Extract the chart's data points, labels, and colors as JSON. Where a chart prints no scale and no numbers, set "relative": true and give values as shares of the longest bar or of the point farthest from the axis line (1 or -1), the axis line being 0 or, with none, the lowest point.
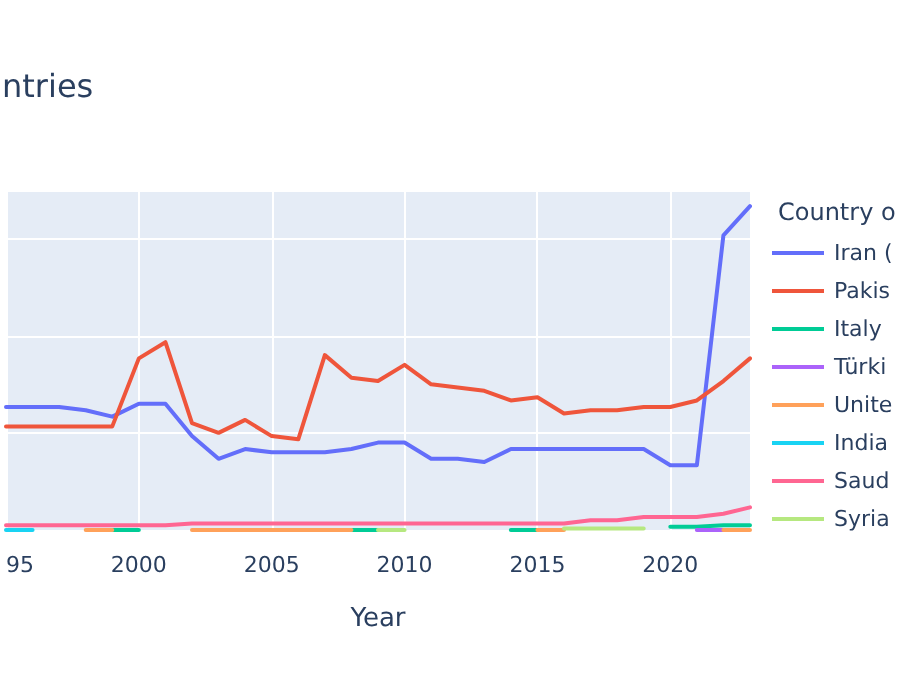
{
  "chart_data": {
    "type": "line",
    "title": "ntries",
    "xlabel": "Year",
    "legend_title": "Country o",
    "relative": true,
    "grid": true,
    "legend": "right",
    "marker": "none",
    "line_style": "solid",
    "x": [
      1995,
      1996,
      1997,
      1998,
      1999,
      2000,
      2001,
      2002,
      2003,
      2004,
      2005,
      2006,
      2007,
      2008,
      2009,
      2010,
      2011,
      2012,
      2013,
      2014,
      2015,
      2016,
      2017,
      2018,
      2019,
      2020,
      2021,
      2022,
      2023
    ],
    "xlim": [
      1995,
      2023
    ],
    "xticks": [
      {
        "value": 1995,
        "label": "95"
      },
      2000,
      2005,
      2010,
      2015,
      2020
    ],
    "series": [
      {
        "name": "Iran (",
        "color": "#636efa",
        "values": [
          0.38,
          0.38,
          0.38,
          0.37,
          0.35,
          0.39,
          0.39,
          0.29,
          0.22,
          0.25,
          0.24,
          0.24,
          0.24,
          0.25,
          0.27,
          0.27,
          0.22,
          0.22,
          0.21,
          0.25,
          0.25,
          0.25,
          0.25,
          0.25,
          0.25,
          0.2,
          0.2,
          0.91,
          1
        ]
      },
      {
        "name": "Pakis",
        "color": "#ef553b",
        "values": [
          0.32,
          0.32,
          0.32,
          0.32,
          0.32,
          0.53,
          0.58,
          0.33,
          0.3,
          0.34,
          0.29,
          0.28,
          0.54,
          0.47,
          0.46,
          0.51,
          0.45,
          0.44,
          0.43,
          0.4,
          0.41,
          0.36,
          0.37,
          0.37,
          0.38,
          0.38,
          0.4,
          0.46,
          0.53
        ]
      },
      {
        "name": "Italy",
        "color": "#00cc96",
        "values": [
          null,
          null,
          null,
          null,
          0,
          0,
          null,
          null,
          null,
          null,
          null,
          null,
          null,
          0,
          0,
          null,
          null,
          null,
          null,
          0,
          0,
          null,
          null,
          null,
          null,
          0.01,
          0.01,
          0.015,
          0.015
        ]
      },
      {
        "name": "Türki",
        "color": "#ab63fa",
        "values": [
          null,
          null,
          null,
          null,
          null,
          null,
          null,
          null,
          null,
          null,
          null,
          null,
          null,
          null,
          null,
          null,
          null,
          null,
          null,
          null,
          null,
          null,
          null,
          null,
          null,
          null,
          0,
          0,
          null
        ]
      },
      {
        "name": "Unite",
        "color": "#ffa15a",
        "values": [
          null,
          null,
          null,
          0,
          0,
          null,
          null,
          0,
          0,
          0,
          0,
          0,
          0,
          0,
          null,
          null,
          null,
          null,
          null,
          null,
          0,
          0,
          null,
          null,
          null,
          null,
          null,
          0,
          0
        ]
      },
      {
        "name": "India",
        "color": "#19d3f3",
        "values": [
          0,
          0,
          null,
          null,
          null,
          null,
          null,
          null,
          null,
          null,
          null,
          null,
          null,
          null,
          null,
          null,
          null,
          null,
          null,
          null,
          null,
          null,
          null,
          null,
          null,
          null,
          null,
          null,
          null
        ]
      },
      {
        "name": "Saud",
        "color": "#ff6692",
        "values": [
          0.015,
          0.015,
          0.015,
          0.015,
          0.015,
          0.015,
          0.015,
          0.02,
          0.02,
          0.02,
          0.02,
          0.02,
          0.02,
          0.02,
          0.02,
          0.02,
          0.02,
          0.02,
          0.02,
          0.02,
          0.02,
          0.02,
          0.03,
          0.03,
          0.04,
          0.04,
          0.04,
          0.05,
          0.07
        ]
      },
      {
        "name": "Syria",
        "color": "#b6e880",
        "values": [
          null,
          null,
          null,
          null,
          null,
          null,
          null,
          null,
          null,
          null,
          null,
          null,
          null,
          null,
          0,
          0,
          null,
          null,
          null,
          null,
          null,
          0.005,
          0.005,
          0.005,
          0.005,
          null,
          null,
          null,
          null
        ]
      }
    ]
  }
}
